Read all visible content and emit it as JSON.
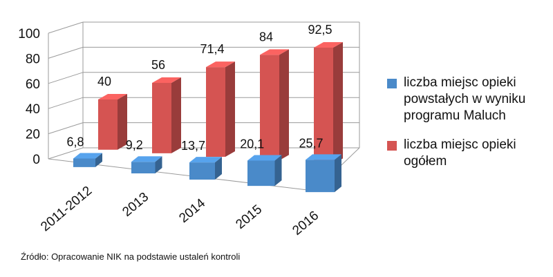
{
  "chart_data": {
    "type": "bar",
    "categories": [
      "2011-2012",
      "2013",
      "2014",
      "2015",
      "2016"
    ],
    "series": [
      {
        "name": "liczba miejsc opieki powstałych w wyniku programu Maluch",
        "values": [
          6.8,
          9.2,
          13.7,
          20.1,
          25.7
        ],
        "labels": [
          "6,8",
          "9,2",
          "13,7",
          "20,1",
          "25,7"
        ],
        "color": "#4a8ac9"
      },
      {
        "name": "liczba miejsc opieki ogółem",
        "values": [
          40,
          56,
          71.4,
          84,
          92.5
        ],
        "labels": [
          "40",
          "56",
          "71,4",
          "84",
          "92,5"
        ],
        "color": "#d55452"
      }
    ],
    "yticks": [
      0,
      20,
      40,
      60,
      80,
      100
    ],
    "ylim": [
      0,
      100
    ],
    "grid": true,
    "legend_position": "right",
    "style": "3d-column"
  },
  "legend": {
    "items": [
      {
        "label": "liczba miejsc opieki powstałych w wyniku programu Maluch",
        "color": "#4a8ac9"
      },
      {
        "label": "liczba miejsc opieki ogółem",
        "color": "#d55452"
      }
    ]
  },
  "source": "Źródło: Opracowanie NIK na podstawie ustaleń kontroli"
}
